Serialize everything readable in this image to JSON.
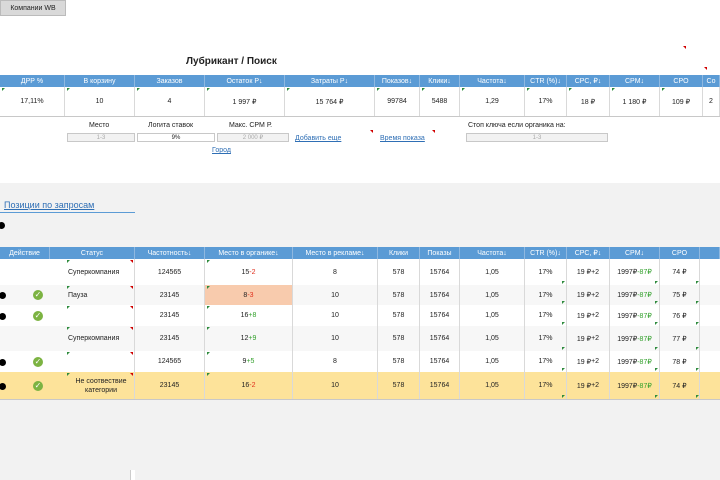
{
  "top": {
    "company_button": "Компании WB",
    "title": "Лубрикант / Поиск"
  },
  "summary": {
    "headers": [
      "ДРР %",
      "В корзину",
      "Заказов",
      "Остаток Р↓",
      "Затраты Р↓",
      "Показов↓",
      "Клики↓",
      "Частота↓",
      "CTR (%)↓",
      "CPC, ₽↓",
      "CPM↓",
      "CPO",
      "Со"
    ],
    "values": [
      "17,11%",
      "10",
      "4",
      "1 997 ₽",
      "15 764 ₽",
      "99784",
      "5488",
      "1,29",
      "17%",
      "18 ₽",
      "1 180 ₽",
      "109 ₽",
      "2"
    ]
  },
  "settings": {
    "place_label": "Место",
    "place_value": "1-3",
    "bid_logic_label": "Логита ставок",
    "bid_logic_value": "9%",
    "max_cpm_label": "Макс. CPM Р.",
    "max_cpm_value": "2 000 ₽",
    "add_more": "Добавить еще",
    "show_time": "Время показа",
    "stop_keys_label": "Стоп ключа если органика на:",
    "stop_keys_value": "1-3",
    "cities": "Город"
  },
  "positions_title": "Позиции по запросам",
  "table": {
    "headers": [
      "Действие",
      "Статус",
      "Частотность↓",
      "Место в органике↓",
      "Место в рекламе↓",
      "Клики",
      "Показы",
      "Частота↓",
      "CTR (%)↓",
      "CPC, ₽↓",
      "CPM↓",
      "CPO"
    ],
    "rows": [
      {
        "status": "Суперкомпания",
        "freq": "124565",
        "org": "15",
        "org_delta": "-2",
        "ad": "8",
        "clicks": "578",
        "shows": "15764",
        "rate": "1,05",
        "ctr": "17%",
        "cpc": "19 ₽",
        "cpc_delta": "+2",
        "cpm": "1997₽",
        "cpm_delta": "-87₽",
        "cpo": "74 ₽",
        "dot": false,
        "check": false
      },
      {
        "status": "Пауза",
        "freq": "23145",
        "org": "8",
        "org_delta": "-3",
        "ad": "10",
        "clicks": "578",
        "shows": "15764",
        "rate": "1,05",
        "ctr": "17%",
        "cpc": "19 ₽",
        "cpc_delta": "+2",
        "cpm": "1997₽",
        "cpm_delta": "-87₽",
        "cpo": "75 ₽",
        "dot": true,
        "check": true
      },
      {
        "status": "",
        "freq": "23145",
        "org": "16",
        "org_delta": "+8",
        "ad": "10",
        "clicks": "578",
        "shows": "15764",
        "rate": "1,05",
        "ctr": "17%",
        "cpc": "19 ₽",
        "cpc_delta": "+2",
        "cpm": "1997₽",
        "cpm_delta": "-87₽",
        "cpo": "76 ₽",
        "dot": true,
        "check": true
      },
      {
        "status": "Суперкомпания",
        "freq": "23145",
        "org": "12",
        "org_delta": "+9",
        "ad": "10",
        "clicks": "578",
        "shows": "15764",
        "rate": "1,05",
        "ctr": "17%",
        "cpc": "19 ₽",
        "cpc_delta": "+2",
        "cpm": "1997₽",
        "cpm_delta": "-87₽",
        "cpo": "77 ₽",
        "dot": false,
        "check": false
      },
      {
        "status": "",
        "freq": "124565",
        "org": "9",
        "org_delta": "+5",
        "ad": "8",
        "clicks": "578",
        "shows": "15764",
        "rate": "1,05",
        "ctr": "17%",
        "cpc": "19 ₽",
        "cpc_delta": "+2",
        "cpm": "1997₽",
        "cpm_delta": "-87₽",
        "cpo": "78 ₽",
        "dot": true,
        "check": true
      },
      {
        "status": "Не соотвествие категории",
        "freq": "23145",
        "org": "16",
        "org_delta": "-2",
        "ad": "10",
        "clicks": "578",
        "shows": "15764",
        "rate": "1,05",
        "ctr": "17%",
        "cpc": "19 ₽",
        "cpc_delta": "+2",
        "cpm": "1997₽",
        "cpm_delta": "-87₽",
        "cpo": "74 ₽",
        "dot": true,
        "check": true
      }
    ]
  }
}
